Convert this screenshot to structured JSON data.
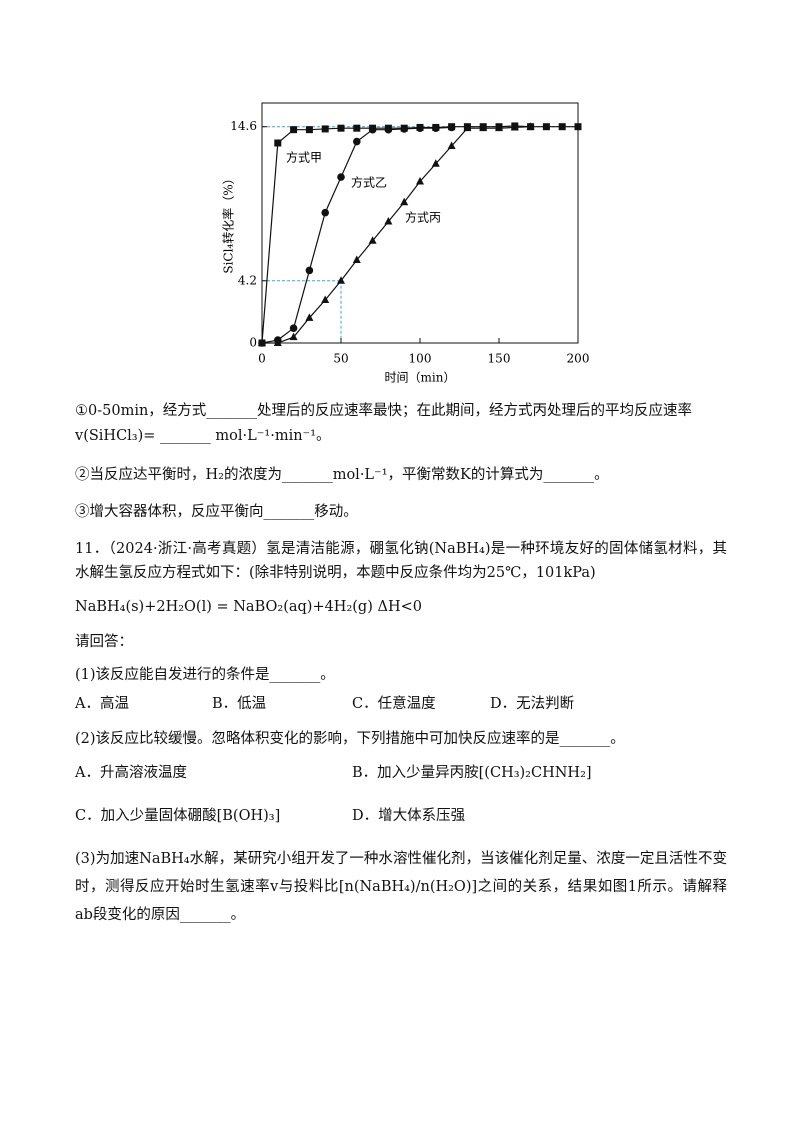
{
  "chart_data": {
    "type": "line",
    "xlabel": "时间（min）",
    "ylabel": "SiCl₄转化率（%）",
    "xlim": [
      0,
      200
    ],
    "ylim": [
      0,
      16.2
    ],
    "xticks": [
      0,
      50,
      100,
      150,
      200
    ],
    "yticks": [
      0,
      4.2,
      14.6
    ],
    "x": [
      0,
      10,
      20,
      30,
      40,
      50,
      60,
      70,
      80,
      90,
      100,
      110,
      120,
      130,
      140,
      150,
      160,
      170,
      180,
      190,
      200
    ],
    "series": [
      {
        "name": "方式甲",
        "color": "#111111",
        "marker": "square",
        "values": [
          0,
          13.5,
          14.4,
          14.4,
          14.45,
          14.5,
          14.5,
          14.5,
          14.5,
          14.5,
          14.55,
          14.55,
          14.6,
          14.6,
          14.6,
          14.6,
          14.65,
          14.6,
          14.6,
          14.6,
          14.6
        ]
      },
      {
        "name": "方式乙",
        "color": "#111111",
        "marker": "circle",
        "values": [
          0,
          0.2,
          1.0,
          4.9,
          8.8,
          11.2,
          13.6,
          14.4,
          14.4,
          14.45,
          14.5,
          14.5,
          14.55,
          null,
          null,
          null,
          null,
          null,
          null,
          null,
          null
        ]
      },
      {
        "name": "方式丙",
        "color": "#111111",
        "marker": "triangle",
        "values": [
          0,
          0,
          0.4,
          1.7,
          2.9,
          4.2,
          5.6,
          6.9,
          8.2,
          9.5,
          10.9,
          12.1,
          13.3,
          14.5,
          14.5,
          14.5,
          14.55,
          14.6,
          null,
          null,
          null
        ]
      }
    ]
  },
  "document": {
    "lines": [
      "①0-50min，经方式_______处理后的反应速率最快；在此期间，经方式丙处理后的平均反应速率",
      "v(SiHCl₃)= _______ mol·L⁻¹·min⁻¹。",
      "②当反应达平衡时，H₂的浓度为_______mol·L⁻¹，平衡常数K的计算式为_______。",
      "③增大容器体积，反应平衡向_______移动。",
      "11．（2024·浙江·高考真题）氢是清洁能源，硼氢化钠(NaBH₄)是一种环境友好的固体储氢材料，其水解生氢反应方程式如下：(除非特别说明，本题中反应条件均为25℃，101kPa)",
      "NaBH₄(s)+2H₂O(l) = NaBO₂(aq)+4H₂(g)    ΔH<0",
      "请回答：",
      "(1)该反应能自发进行的条件是_______。",
      "(2)该反应比较缓慢。忽略体积变化的影响，下列措施中可加快反应速率的是_______。",
      "(3)为加速NaBH₄水解，某研究小组开发了一种水溶性催化剂，当该催化剂足量、浓度一定且活性不变时，测得反应开始时生氢速率v与投料比[n(NaBH₄)/n(H₂O)]之间的关系，结果如图1所示。请解释ab段变化的原因_______。"
    ],
    "options_1": [
      "A．高温",
      "B．低温",
      "C．任意温度",
      "D．无法判断"
    ],
    "options_2": [
      "A．升高溶液温度",
      "B．加入少量异丙胺[(CH₃)₂CHNH₂]",
      "C．加入少量固体硼酸[B(OH)₃]",
      "D．增大体系压强"
    ]
  }
}
